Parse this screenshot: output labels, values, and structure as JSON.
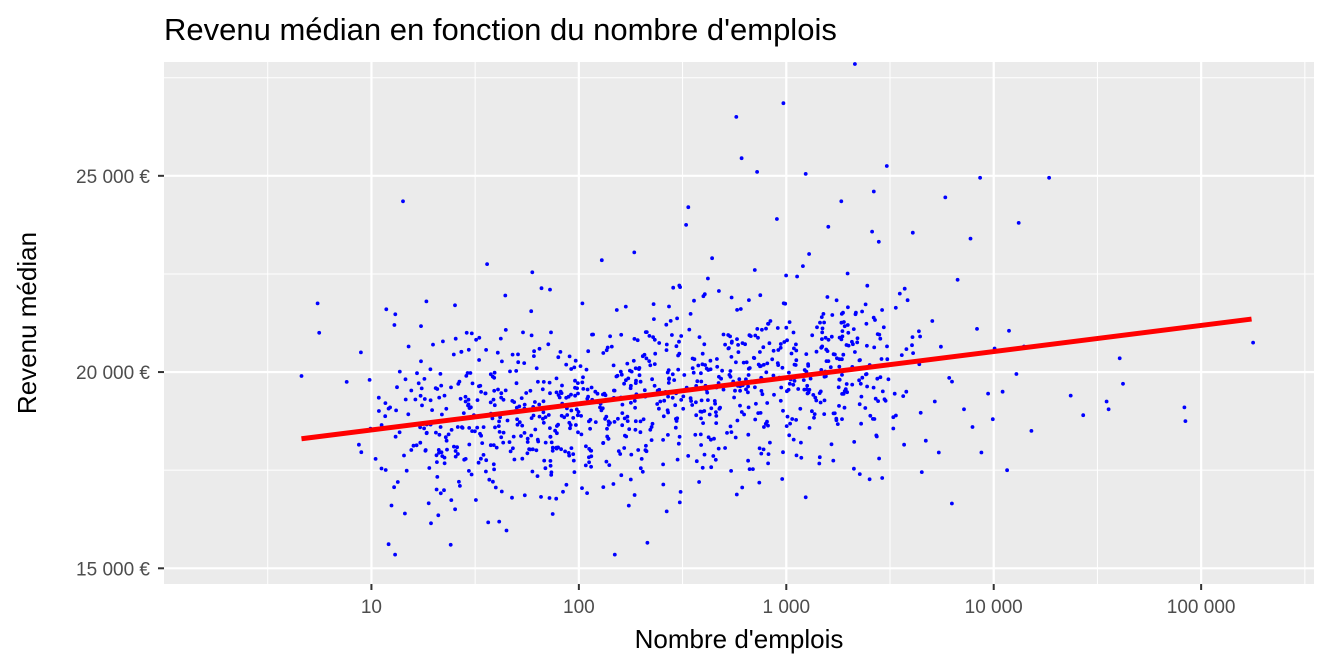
{
  "chart_data": {
    "type": "scatter",
    "title": "Revenu médian en fonction du nombre d'emplois",
    "xlabel": "Nombre d'emplois",
    "ylabel": "Revenu médian",
    "x_scale": "log10",
    "xlim": [
      1,
      350000
    ],
    "ylim": [
      14600,
      27900
    ],
    "x_ticks": [
      {
        "value": 10,
        "label": "10"
      },
      {
        "value": 100,
        "label": "100"
      },
      {
        "value": 1000,
        "label": "1 000"
      },
      {
        "value": 10000,
        "label": "10 000"
      },
      {
        "value": 100000,
        "label": "100 000"
      }
    ],
    "y_ticks": [
      {
        "value": 15000,
        "label": "15 000  €"
      },
      {
        "value": 20000,
        "label": "20 000  €"
      },
      {
        "value": 25000,
        "label": "25 000  €"
      }
    ],
    "grid": true,
    "point_color": "#0000ff",
    "line_color": "#ff0000",
    "panel_color": "#ebebeb",
    "trend_line": {
      "x": [
        4.6,
        175000
      ],
      "y": [
        18300,
        21350
      ]
    },
    "points": [
      [
        4.6,
        19900
      ],
      [
        5.5,
        21750
      ],
      [
        5.6,
        21000
      ],
      [
        7.6,
        19750
      ],
      [
        8.9,
        20500
      ],
      [
        9.8,
        19800
      ],
      [
        11.2,
        18650
      ],
      [
        11.8,
        21600
      ],
      [
        12.3,
        19100
      ],
      [
        12.9,
        21200
      ],
      [
        13.4,
        17200
      ],
      [
        14.2,
        24350
      ],
      [
        15.1,
        20650
      ],
      [
        16.3,
        19300
      ],
      [
        17.2,
        18200
      ],
      [
        18.4,
        21800
      ],
      [
        19.8,
        20700
      ],
      [
        21.0,
        16350
      ],
      [
        22.5,
        19400
      ],
      [
        24.1,
        15600
      ],
      [
        25.3,
        21700
      ],
      [
        26.7,
        17100
      ],
      [
        13.0,
        15350
      ],
      [
        12.5,
        16600
      ],
      [
        28.8,
        21000
      ],
      [
        31.2,
        18900
      ],
      [
        33.5,
        19650
      ],
      [
        36.1,
        22750
      ],
      [
        38.9,
        17650
      ],
      [
        41.7,
        18850
      ],
      [
        44.2,
        21950
      ],
      [
        47.6,
        16800
      ],
      [
        51.0,
        20250
      ],
      [
        54.7,
        18450
      ],
      [
        58.9,
        21550
      ],
      [
        63.2,
        17350
      ],
      [
        67.8,
        19750
      ],
      [
        72.6,
        22100
      ],
      [
        78.1,
        18050
      ],
      [
        83.9,
        16950
      ],
      [
        90.2,
        20400
      ],
      [
        96.8,
        18650
      ],
      [
        104,
        21750
      ],
      [
        112,
        17700
      ],
      [
        120,
        19500
      ],
      [
        129,
        22850
      ],
      [
        139,
        18300
      ],
      [
        149,
        15350
      ],
      [
        160,
        20950
      ],
      [
        172,
        18750
      ],
      [
        185,
        23050
      ],
      [
        199,
        17550
      ],
      [
        214,
        15650
      ],
      [
        230,
        21350
      ],
      [
        247,
        19250
      ],
      [
        265,
        16450
      ],
      [
        285,
        22150
      ],
      [
        306,
        18350
      ],
      [
        329,
        23750
      ],
      [
        337,
        24200
      ],
      [
        354,
        20100
      ],
      [
        380,
        17200
      ],
      [
        408,
        19650
      ],
      [
        439,
        22900
      ],
      [
        472,
        18050
      ],
      [
        507,
        20700
      ],
      [
        545,
        21900
      ],
      [
        574,
        26500
      ],
      [
        609,
        25450
      ],
      [
        658,
        19100
      ],
      [
        705,
        22600
      ],
      [
        723,
        25100
      ],
      [
        780,
        18600
      ],
      [
        838,
        21300
      ],
      [
        901,
        23900
      ],
      [
        968,
        26850
      ],
      [
        1040,
        19700
      ],
      [
        1118,
        20550
      ],
      [
        1202,
        22700
      ],
      [
        1241,
        25050
      ],
      [
        1380,
        19350
      ],
      [
        1484,
        21400
      ],
      [
        1595,
        23700
      ],
      [
        1714,
        18950
      ],
      [
        1842,
        24350
      ],
      [
        1980,
        21200
      ],
      [
        2141,
        27850
      ],
      [
        2287,
        19700
      ],
      [
        2458,
        22200
      ],
      [
        2642,
        24600
      ],
      [
        2840,
        20850
      ],
      [
        3052,
        25250
      ],
      [
        3280,
        18850
      ],
      [
        3526,
        22000
      ],
      [
        3790,
        19500
      ],
      [
        4073,
        23550
      ],
      [
        4378,
        20200
      ],
      [
        4706,
        18250
      ],
      [
        5058,
        21300
      ],
      [
        5436,
        17950
      ],
      [
        5843,
        24450
      ],
      [
        6290,
        16650
      ],
      [
        6700,
        22350
      ],
      [
        7188,
        19050
      ],
      [
        7726,
        23400
      ],
      [
        8304,
        21100
      ],
      [
        8600,
        24950
      ],
      [
        8726,
        17950
      ],
      [
        9397,
        19450
      ],
      [
        10100,
        20600
      ],
      [
        11034,
        19500
      ],
      [
        11600,
        17500
      ],
      [
        11850,
        21050
      ],
      [
        12859,
        19950
      ],
      [
        13200,
        23800
      ],
      [
        15200,
        18500
      ],
      [
        18500,
        24950
      ],
      [
        35000,
        19250
      ],
      [
        35800,
        19050
      ],
      [
        40500,
        20350
      ],
      [
        42000,
        19700
      ],
      [
        83000,
        19100
      ],
      [
        84000,
        18750
      ],
      [
        178000,
        20750
      ],
      [
        23500,
        19400
      ],
      [
        27000,
        18900
      ],
      [
        6100,
        19850
      ],
      [
        4500,
        17450
      ],
      [
        3700,
        18150
      ],
      [
        2900,
        17300
      ],
      [
        5200,
        19250
      ],
      [
        7900,
        18600
      ],
      [
        9900,
        18800
      ],
      [
        14000,
        20650
      ]
    ]
  }
}
